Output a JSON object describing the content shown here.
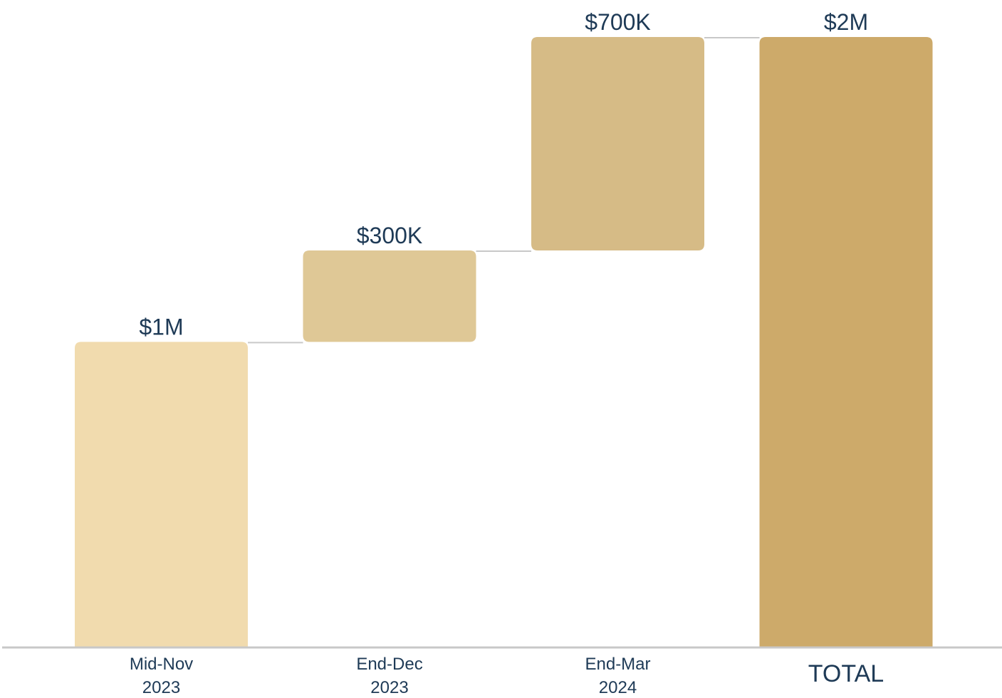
{
  "chart_data": {
    "type": "bar",
    "subtype": "waterfall",
    "categories": [
      [
        "Mid-Nov",
        "2023"
      ],
      [
        "End-Dec",
        "2023"
      ],
      [
        "End-Mar",
        "2024"
      ],
      [
        "TOTAL"
      ]
    ],
    "values": [
      1000000,
      300000,
      700000,
      2000000
    ],
    "data_labels": [
      "$1M",
      "$300K",
      "$700K",
      "$2M"
    ],
    "is_total": [
      false,
      false,
      false,
      true
    ],
    "title": "",
    "xlabel": "",
    "ylabel": "",
    "ylim": [
      0,
      2000000
    ],
    "grid": false,
    "legend": "none",
    "colors": {
      "bars": [
        "#f1dbae",
        "#dfc896",
        "#d6bb86",
        "#cdaa6a"
      ],
      "connector": "#c8c8c8",
      "axis": "#c8c8c8",
      "text": "#1e3a56"
    }
  }
}
